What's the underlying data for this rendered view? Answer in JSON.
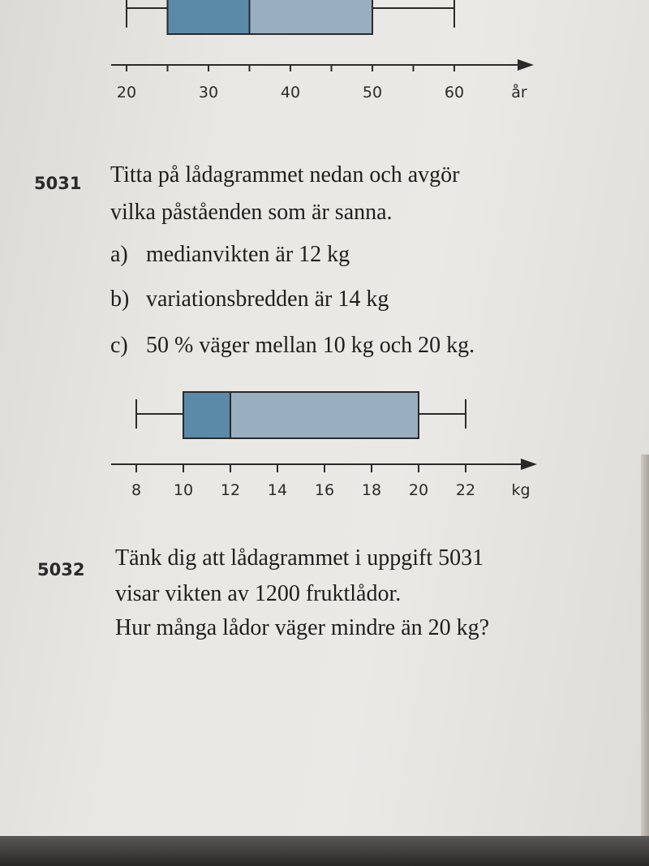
{
  "chart_data": [
    {
      "type": "boxplot",
      "min": 20,
      "q1": 25,
      "median": 35,
      "q3": 50,
      "max": 60,
      "xlim": [
        19,
        69
      ],
      "ticks": [
        20,
        25,
        30,
        35,
        40,
        45,
        50,
        55,
        60
      ],
      "tick_labels": [
        "20",
        "30",
        "40",
        "50",
        "60"
      ],
      "tick_label_values": [
        20,
        30,
        40,
        50,
        60
      ],
      "unit": "år",
      "colors": {
        "lower_box": "#5a8aa8",
        "upper_box": "#98afc0"
      }
    },
    {
      "type": "boxplot",
      "min": 8,
      "q1": 10,
      "median": 12,
      "q3": 20,
      "max": 22,
      "xlim": [
        7,
        25.5
      ],
      "ticks": [
        8,
        10,
        12,
        14,
        16,
        18,
        20,
        22
      ],
      "tick_labels": [
        "8",
        "10",
        "12",
        "14",
        "16",
        "18",
        "20",
        "22"
      ],
      "tick_label_values": [
        8,
        10,
        12,
        14,
        16,
        18,
        20,
        22
      ],
      "unit": "kg",
      "colors": {
        "lower_box": "#5a8aa8",
        "upper_box": "#98afc0"
      }
    }
  ],
  "problems": [
    {
      "number": "5031",
      "lines": [
        "Titta på lådagrammet nedan och avgör",
        "vilka påståenden som är sanna."
      ],
      "options": [
        {
          "label": "a)",
          "text": "medianvikten är 12 kg"
        },
        {
          "label": "b)",
          "text": "variationsbredden är 14 kg"
        },
        {
          "label": "c)",
          "text": "50 % väger mellan 10 kg och 20 kg."
        }
      ]
    },
    {
      "number": "5032",
      "lines": [
        "Tänk dig att lådagrammet i uppgift 5031",
        "visar vikten av 1200 fruktlådor.",
        "Hur många lådor väger mindre än 20 kg?"
      ]
    }
  ]
}
